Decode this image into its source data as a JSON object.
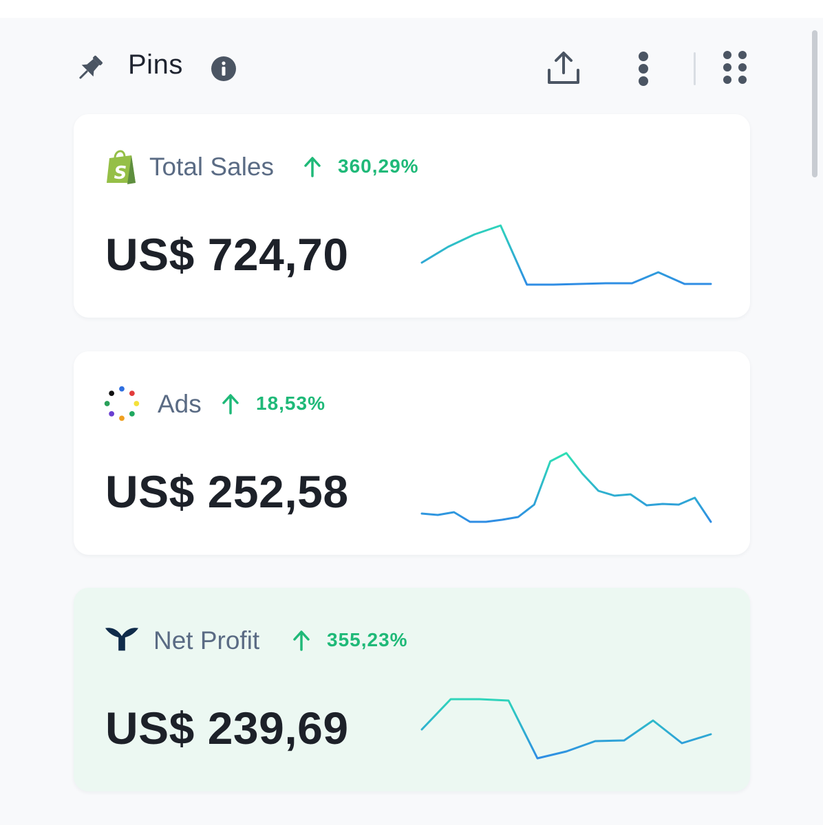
{
  "header": {
    "title": "Pins",
    "icons": [
      "pin-icon",
      "info-icon",
      "share-icon",
      "more-vertical-icon",
      "drag-grid-icon"
    ]
  },
  "cards": [
    {
      "label": "Total Sales",
      "logo": "shopify-icon",
      "trend": "360,29%",
      "trend_direction": "up",
      "amount": "US$ 724,70",
      "sparkline": [
        0.32,
        0.55,
        0.73,
        0.86,
        0.0,
        0.0,
        0.01,
        0.02,
        0.02,
        0.18,
        0.01,
        0.01
      ]
    },
    {
      "label": "Ads",
      "logo": "dots-circle-icon",
      "trend": "18,53%",
      "trend_direction": "up",
      "amount": "US$ 252,58",
      "sparkline": [
        0.12,
        0.1,
        0.14,
        0.0,
        0.0,
        0.03,
        0.07,
        0.25,
        0.88,
        1.0,
        0.7,
        0.45,
        0.38,
        0.4,
        0.24,
        0.26,
        0.25,
        0.35,
        0.0
      ]
    },
    {
      "label": "Net Profit",
      "logo": "triple-whale-icon",
      "trend": "355,23%",
      "trend_direction": "up",
      "amount": "US$ 239,69",
      "sparkline": [
        0.42,
        0.86,
        0.86,
        0.84,
        0.0,
        0.1,
        0.25,
        0.26,
        0.55,
        0.22,
        0.35
      ]
    }
  ],
  "colors": {
    "trend_up": "#1fb978",
    "line_start": "#2f8de4",
    "line_peak": "#2fe0b4",
    "highlight_card": "#ecf8f2"
  }
}
